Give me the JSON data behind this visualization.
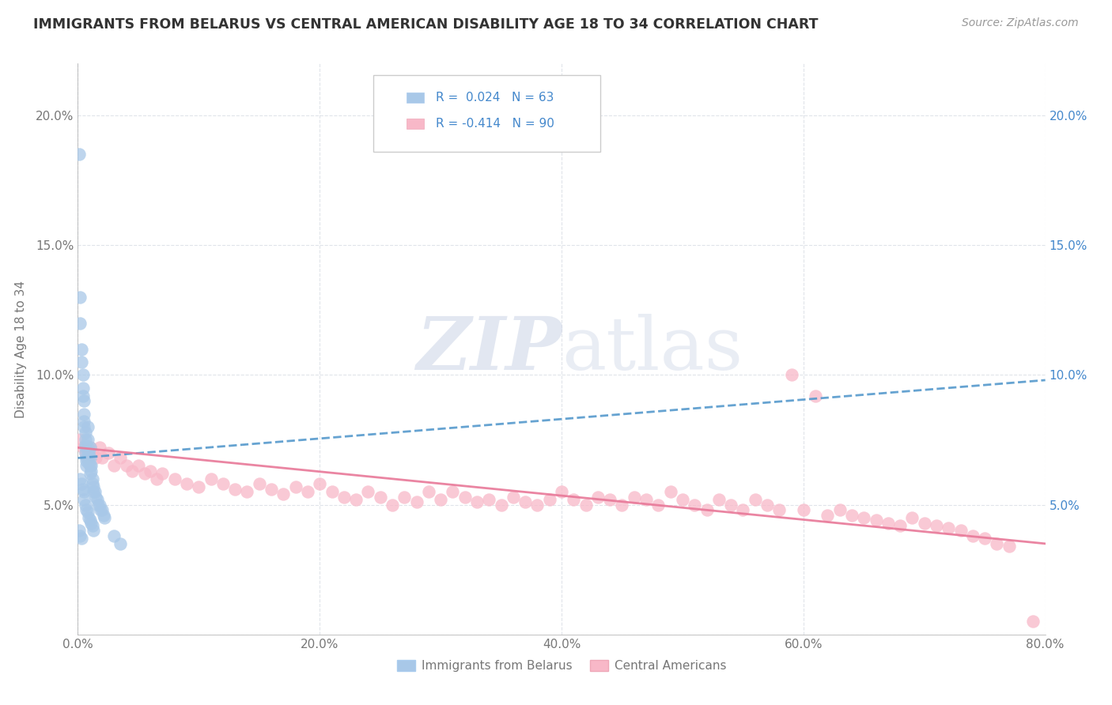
{
  "title": "IMMIGRANTS FROM BELARUS VS CENTRAL AMERICAN DISABILITY AGE 18 TO 34 CORRELATION CHART",
  "source": "Source: ZipAtlas.com",
  "ylabel": "Disability Age 18 to 34",
  "xlim": [
    0.0,
    0.8
  ],
  "ylim": [
    0.0,
    0.22
  ],
  "x_ticks": [
    0.0,
    0.2,
    0.4,
    0.6,
    0.8
  ],
  "x_tick_labels": [
    "0.0%",
    "20.0%",
    "40.0%",
    "60.0%",
    "80.0%"
  ],
  "y_ticks": [
    0.0,
    0.05,
    0.1,
    0.15,
    0.2
  ],
  "y_tick_labels_left": [
    "",
    "5.0%",
    "10.0%",
    "15.0%",
    "20.0%"
  ],
  "y_tick_labels_right": [
    "",
    "5.0%",
    "10.0%",
    "15.0%",
    "20.0%"
  ],
  "series1_name": "Immigrants from Belarus",
  "series1_color": "#a8c8e8",
  "series1_edge_color": "#7aaed4",
  "series1_R": "0.024",
  "series1_N": "63",
  "series1_line_color": "#5599cc",
  "series2_name": "Central Americans",
  "series2_color": "#f8b8c8",
  "series2_edge_color": "#e890a8",
  "series2_R": "-0.414",
  "series2_N": "90",
  "series2_line_color": "#e87898",
  "legend_text_color": "#4488cc",
  "watermark_color": "#d0d8e8",
  "background_color": "#ffffff",
  "grid_color": "#e0e4ea",
  "title_color": "#333333",
  "source_color": "#999999",
  "axis_color": "#aaaaaa",
  "tick_color": "#777777",
  "right_tick_color": "#4488cc",
  "series1_x": [
    0.001,
    0.002,
    0.002,
    0.003,
    0.003,
    0.004,
    0.004,
    0.004,
    0.005,
    0.005,
    0.005,
    0.005,
    0.006,
    0.006,
    0.006,
    0.006,
    0.006,
    0.007,
    0.007,
    0.007,
    0.008,
    0.008,
    0.008,
    0.009,
    0.009,
    0.009,
    0.01,
    0.01,
    0.01,
    0.01,
    0.011,
    0.011,
    0.012,
    0.012,
    0.013,
    0.013,
    0.014,
    0.015,
    0.016,
    0.017,
    0.018,
    0.019,
    0.02,
    0.021,
    0.022,
    0.002,
    0.003,
    0.004,
    0.005,
    0.005,
    0.006,
    0.007,
    0.008,
    0.009,
    0.01,
    0.011,
    0.012,
    0.013,
    0.03,
    0.035,
    0.001,
    0.002,
    0.003
  ],
  "series1_y": [
    0.185,
    0.13,
    0.12,
    0.11,
    0.105,
    0.1,
    0.095,
    0.092,
    0.09,
    0.085,
    0.082,
    0.08,
    0.078,
    0.075,
    0.073,
    0.072,
    0.07,
    0.068,
    0.067,
    0.065,
    0.08,
    0.075,
    0.072,
    0.07,
    0.068,
    0.066,
    0.072,
    0.068,
    0.065,
    0.062,
    0.065,
    0.063,
    0.06,
    0.058,
    0.057,
    0.055,
    0.055,
    0.053,
    0.052,
    0.05,
    0.05,
    0.048,
    0.048,
    0.046,
    0.045,
    0.06,
    0.058,
    0.056,
    0.055,
    0.052,
    0.05,
    0.048,
    0.047,
    0.045,
    0.044,
    0.043,
    0.042,
    0.04,
    0.038,
    0.035,
    0.04,
    0.038,
    0.037
  ],
  "series2_x": [
    0.002,
    0.004,
    0.006,
    0.008,
    0.01,
    0.012,
    0.015,
    0.018,
    0.02,
    0.025,
    0.03,
    0.035,
    0.04,
    0.045,
    0.05,
    0.055,
    0.06,
    0.065,
    0.07,
    0.08,
    0.09,
    0.1,
    0.11,
    0.12,
    0.13,
    0.14,
    0.15,
    0.16,
    0.17,
    0.18,
    0.19,
    0.2,
    0.21,
    0.22,
    0.23,
    0.24,
    0.25,
    0.26,
    0.27,
    0.28,
    0.29,
    0.3,
    0.31,
    0.32,
    0.33,
    0.34,
    0.35,
    0.36,
    0.37,
    0.38,
    0.39,
    0.4,
    0.41,
    0.42,
    0.43,
    0.44,
    0.45,
    0.46,
    0.47,
    0.48,
    0.49,
    0.5,
    0.51,
    0.52,
    0.53,
    0.54,
    0.55,
    0.56,
    0.57,
    0.58,
    0.59,
    0.6,
    0.61,
    0.62,
    0.63,
    0.64,
    0.65,
    0.66,
    0.67,
    0.68,
    0.69,
    0.7,
    0.71,
    0.72,
    0.73,
    0.74,
    0.75,
    0.76,
    0.77,
    0.79
  ],
  "series2_y": [
    0.075,
    0.072,
    0.07,
    0.068,
    0.072,
    0.07,
    0.068,
    0.072,
    0.068,
    0.07,
    0.065,
    0.068,
    0.065,
    0.063,
    0.065,
    0.062,
    0.063,
    0.06,
    0.062,
    0.06,
    0.058,
    0.057,
    0.06,
    0.058,
    0.056,
    0.055,
    0.058,
    0.056,
    0.054,
    0.057,
    0.055,
    0.058,
    0.055,
    0.053,
    0.052,
    0.055,
    0.053,
    0.05,
    0.053,
    0.051,
    0.055,
    0.052,
    0.055,
    0.053,
    0.051,
    0.052,
    0.05,
    0.053,
    0.051,
    0.05,
    0.052,
    0.055,
    0.052,
    0.05,
    0.053,
    0.052,
    0.05,
    0.053,
    0.052,
    0.05,
    0.055,
    0.052,
    0.05,
    0.048,
    0.052,
    0.05,
    0.048,
    0.052,
    0.05,
    0.048,
    0.1,
    0.048,
    0.092,
    0.046,
    0.048,
    0.046,
    0.045,
    0.044,
    0.043,
    0.042,
    0.045,
    0.043,
    0.042,
    0.041,
    0.04,
    0.038,
    0.037,
    0.035,
    0.034,
    0.005
  ],
  "trendline1_x": [
    0.0,
    0.8
  ],
  "trendline1_y": [
    0.068,
    0.098
  ],
  "trendline2_x": [
    0.0,
    0.8
  ],
  "trendline2_y": [
    0.072,
    0.035
  ]
}
